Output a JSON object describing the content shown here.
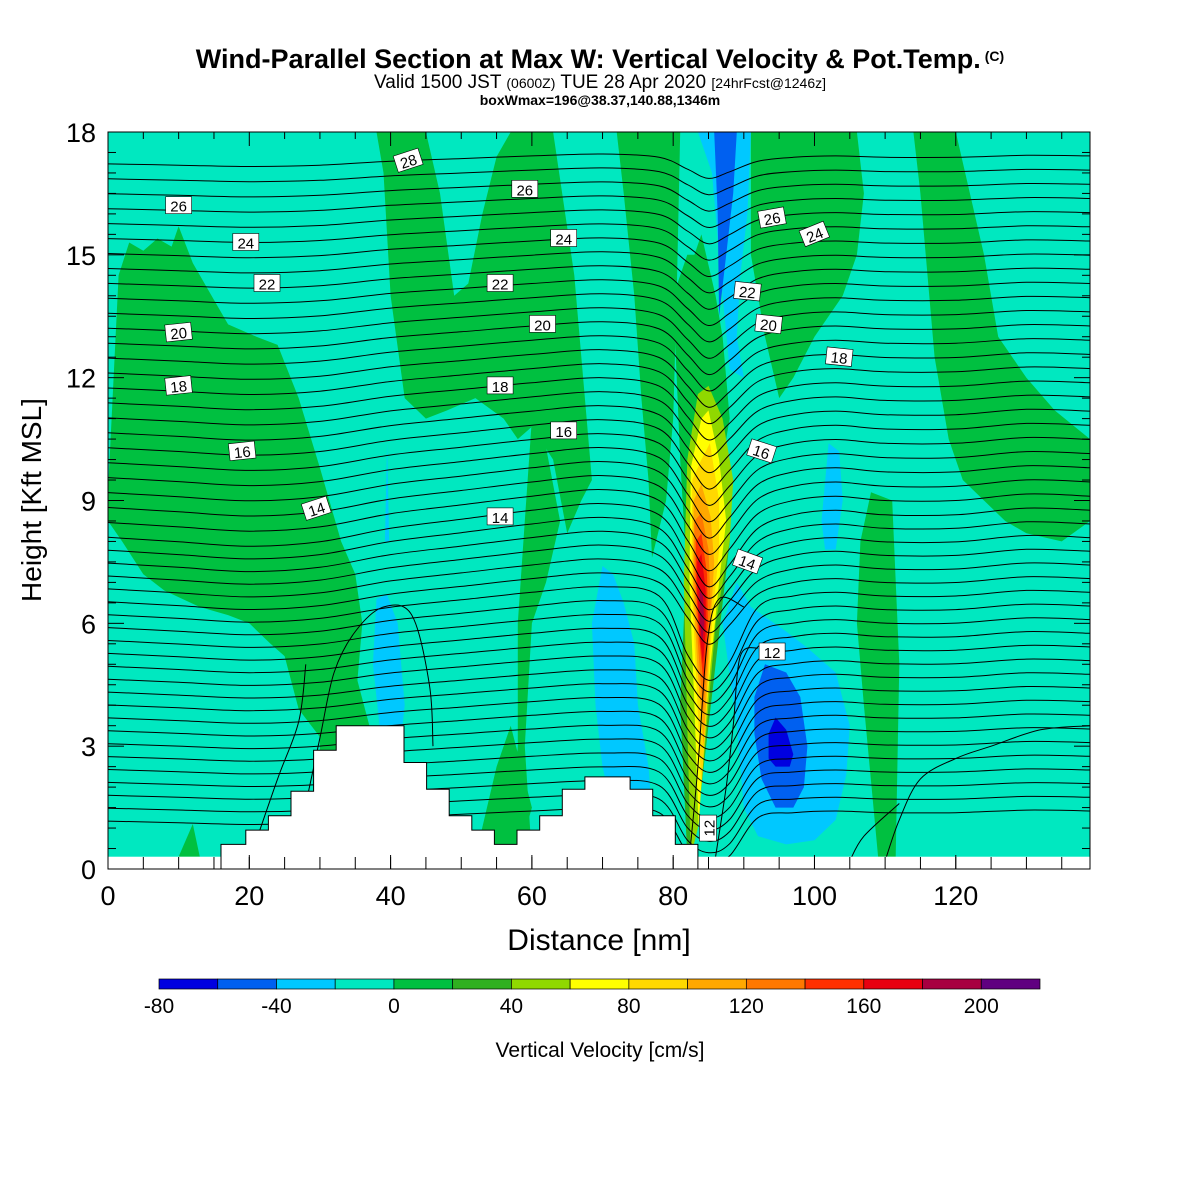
{
  "title": {
    "line1": "Wind-Parallel Section at Max W: Vertical Velocity & Pot.Temp.",
    "line1_mark": "(C)",
    "line2_a": "Valid 1500 JST",
    "line2_b": "(0600Z)",
    "line2_c": "TUE 28 Apr 2020",
    "line2_d": "[24hrFcst@1246z]",
    "line3": "boxWmax=196@38.37,140.88,1346m"
  },
  "chart_data": {
    "type": "heatmap",
    "xlabel": "Distance [nm]",
    "ylabel": "Height [Kft MSL]",
    "xlim": [
      0,
      139
    ],
    "ylim": [
      0,
      18
    ],
    "xticks": [
      0,
      20,
      40,
      60,
      80,
      100,
      120
    ],
    "yticks": [
      0,
      3,
      6,
      9,
      12,
      15,
      18
    ],
    "colorbar": {
      "label": "Vertical Velocity [cm/s]",
      "levels": [
        -80,
        -60,
        -40,
        -20,
        0,
        20,
        40,
        60,
        80,
        100,
        120,
        140,
        160,
        180,
        200,
        220
      ],
      "tick_labels": [
        "-80",
        "-40",
        "0",
        "40",
        "80",
        "120",
        "160",
        "200"
      ],
      "colors": [
        "#0000e0",
        "#0060f0",
        "#00c8ff",
        "#00e8c0",
        "#00c040",
        "#30b020",
        "#90d800",
        "#ffff00",
        "#ffd800",
        "#ffa800",
        "#ff7800",
        "#ff3000",
        "#e80010",
        "#a80040",
        "#600080"
      ]
    },
    "theta_contours": [
      12,
      14,
      16,
      18,
      20,
      22,
      24,
      26,
      28
    ],
    "contour_labels": [
      {
        "x": 10,
        "y": 16.2,
        "t": "26"
      },
      {
        "x": 19.5,
        "y": 15.3,
        "t": "24"
      },
      {
        "x": 22.5,
        "y": 14.3,
        "t": "22"
      },
      {
        "x": 10,
        "y": 13.1,
        "t": "20"
      },
      {
        "x": 10,
        "y": 11.8,
        "t": "18"
      },
      {
        "x": 19,
        "y": 10.2,
        "t": "16"
      },
      {
        "x": 29.5,
        "y": 8.8,
        "t": "14"
      },
      {
        "x": 42.5,
        "y": 17.3,
        "t": "28"
      },
      {
        "x": 59,
        "y": 16.6,
        "t": "26"
      },
      {
        "x": 64.5,
        "y": 15.4,
        "t": "24"
      },
      {
        "x": 55.5,
        "y": 14.3,
        "t": "22"
      },
      {
        "x": 61.5,
        "y": 13.3,
        "t": "20"
      },
      {
        "x": 55.5,
        "y": 11.8,
        "t": "18"
      },
      {
        "x": 64.5,
        "y": 10.7,
        "t": "16"
      },
      {
        "x": 55.5,
        "y": 8.6,
        "t": "14"
      },
      {
        "x": 94,
        "y": 15.9,
        "t": "26"
      },
      {
        "x": 100,
        "y": 15.5,
        "t": "24"
      },
      {
        "x": 90.5,
        "y": 14.1,
        "t": "22"
      },
      {
        "x": 93.5,
        "y": 13.3,
        "t": "20"
      },
      {
        "x": 103.5,
        "y": 12.5,
        "t": "18"
      },
      {
        "x": 92.5,
        "y": 10.2,
        "t": "16"
      },
      {
        "x": 90.5,
        "y": 7.5,
        "t": "14"
      },
      {
        "x": 94,
        "y": 5.3,
        "t": "12"
      },
      {
        "x": 85,
        "y": 1.0,
        "t": "12"
      }
    ],
    "terrain": [
      {
        "x0": 16,
        "x1": 19.5,
        "h": 0.6
      },
      {
        "x0": 19.5,
        "x1": 22.7,
        "h": 0.95
      },
      {
        "x0": 22.7,
        "x1": 25.9,
        "h": 1.3
      },
      {
        "x0": 25.9,
        "x1": 29.1,
        "h": 1.9
      },
      {
        "x0": 29.1,
        "x1": 32.3,
        "h": 2.9
      },
      {
        "x0": 32.3,
        "x1": 35.5,
        "h": 3.5
      },
      {
        "x0": 35.5,
        "x1": 38.7,
        "h": 3.5
      },
      {
        "x0": 38.7,
        "x1": 41.9,
        "h": 3.5
      },
      {
        "x0": 41.9,
        "x1": 45.1,
        "h": 2.6
      },
      {
        "x0": 45.1,
        "x1": 48.3,
        "h": 1.95
      },
      {
        "x0": 48.3,
        "x1": 51.5,
        "h": 1.3
      },
      {
        "x0": 51.5,
        "x1": 54.7,
        "h": 0.95
      },
      {
        "x0": 54.7,
        "x1": 57.9,
        "h": 0.6
      },
      {
        "x0": 57.9,
        "x1": 61.1,
        "h": 0.95
      },
      {
        "x0": 61.1,
        "x1": 64.3,
        "h": 1.3
      },
      {
        "x0": 64.3,
        "x1": 67.5,
        "h": 1.95
      },
      {
        "x0": 67.5,
        "x1": 70.7,
        "h": 2.25
      },
      {
        "x0": 70.7,
        "x1": 73.9,
        "h": 2.25
      },
      {
        "x0": 73.9,
        "x1": 77.1,
        "h": 1.95
      },
      {
        "x0": 77.1,
        "x1": 80.3,
        "h": 1.3
      },
      {
        "x0": 80.3,
        "x1": 83.5,
        "h": 0.6
      }
    ]
  }
}
